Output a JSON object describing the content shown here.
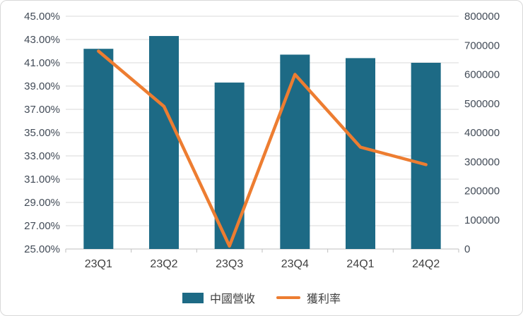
{
  "chart_data": {
    "type": "bar",
    "subtype": "combo-bar-line",
    "title": "",
    "categories": [
      "23Q1",
      "23Q2",
      "23Q3",
      "23Q4",
      "24Q1",
      "24Q2"
    ],
    "series": [
      {
        "name": "中國營收",
        "type": "bar",
        "axis": "left",
        "values": [
          42.2,
          43.3,
          39.3,
          41.7,
          41.4,
          41.0
        ],
        "color": "#1d6a85"
      },
      {
        "name": "獲利率",
        "type": "line",
        "axis": "right",
        "values": [
          680000,
          490000,
          10000,
          600000,
          350000,
          290000
        ],
        "color": "#ed7d31"
      }
    ],
    "left_axis": {
      "min": 25,
      "max": 45,
      "step": 2,
      "format": "percent-2dp",
      "tick_labels": [
        "25.00%",
        "27.00%",
        "29.00%",
        "31.00%",
        "33.00%",
        "35.00%",
        "37.00%",
        "39.00%",
        "41.00%",
        "43.00%",
        "45.00%"
      ]
    },
    "right_axis": {
      "min": 0,
      "max": 800000,
      "step": 100000,
      "tick_labels": [
        "0",
        "100000",
        "200000",
        "300000",
        "400000",
        "500000",
        "600000",
        "700000",
        "800000"
      ]
    },
    "grid": true,
    "legend_position": "bottom",
    "colors": {
      "grid": "#d9d9d9",
      "axis": "#bfbfbf",
      "tick_text": "#424b57"
    }
  },
  "legend": {
    "items": [
      {
        "label": "中國營收"
      },
      {
        "label": "獲利率"
      }
    ]
  }
}
